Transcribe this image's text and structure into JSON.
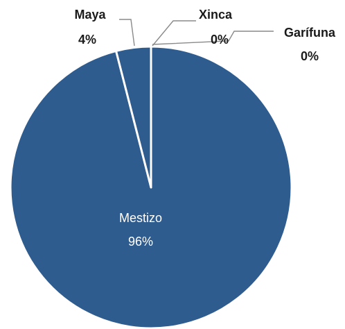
{
  "chart_data": {
    "type": "pie",
    "title": "",
    "colors": {
      "slice": "#2e5c8f",
      "border": "#ffffff",
      "label_dark": "#1a1a1a",
      "label_light": "#ffffff"
    },
    "slices": [
      {
        "name": "Mestizo",
        "value": 96,
        "label": "96%"
      },
      {
        "name": "Maya",
        "value": 4,
        "label": "4%"
      },
      {
        "name": "Xinca",
        "value": 0,
        "label": "0%"
      },
      {
        "name": "Garífuna",
        "value": 0,
        "label": "0%"
      }
    ]
  }
}
